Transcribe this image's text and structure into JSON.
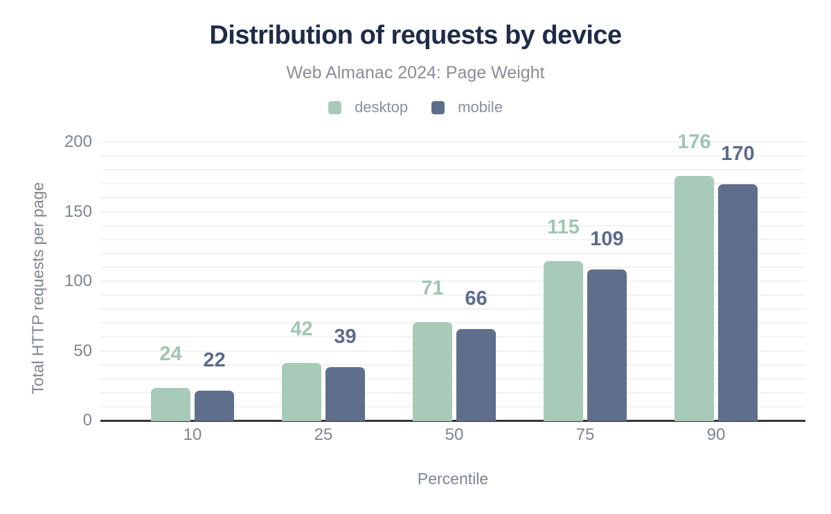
{
  "title": "Distribution of requests by device",
  "subtitle": "Web Almanac 2024: Page Weight",
  "legend": [
    {
      "label": "desktop",
      "color": "#a8cab9"
    },
    {
      "label": "mobile",
      "color": "#5f6e8b"
    }
  ],
  "chart_data": {
    "type": "bar",
    "categories": [
      "10",
      "25",
      "50",
      "75",
      "90"
    ],
    "series": [
      {
        "name": "desktop",
        "color": "#a8cab9",
        "label_color": "#9fc6b1",
        "values": [
          24,
          42,
          71,
          115,
          176
        ]
      },
      {
        "name": "mobile",
        "color": "#5f6e8b",
        "label_color": "#5c6b89",
        "values": [
          22,
          39,
          66,
          109,
          170
        ]
      }
    ],
    "title": "Distribution of requests by device",
    "subtitle": "Web Almanac 2024: Page Weight",
    "xlabel": "Percentile",
    "ylabel": "Total HTTP requests per page",
    "ylim": [
      0,
      200
    ],
    "yticks": [
      0,
      50,
      100,
      150,
      200
    ],
    "grid": "horizontal, every 10 units",
    "legend_position": "top",
    "data_labels": "shown above each bar"
  },
  "colors": {
    "title": "#1f2b47",
    "subtitle": "#888e96",
    "tick_labels": "#7f848e",
    "axis_line": "#363438",
    "gridline": "#f3f2f2",
    "background": "#ffffff"
  }
}
